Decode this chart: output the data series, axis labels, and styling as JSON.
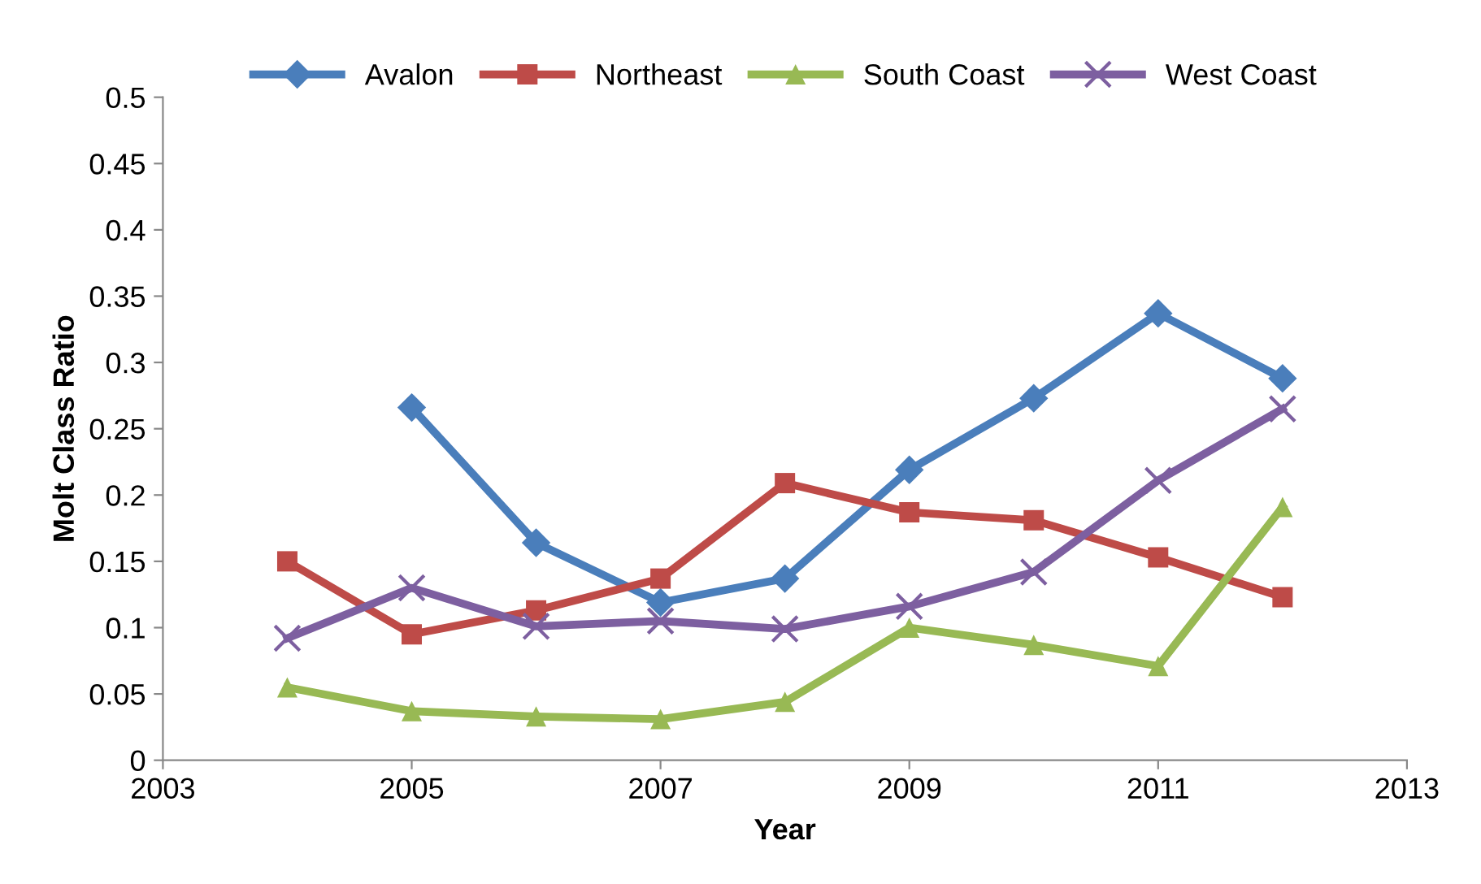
{
  "chart_data": {
    "type": "line",
    "xlabel": "Year",
    "ylabel": "Molt Class Ratio",
    "x": [
      2004,
      2005,
      2006,
      2007,
      2008,
      2009,
      2010,
      2011,
      2012
    ],
    "series": [
      {
        "name": "Avalon",
        "color": "#4a7ebb",
        "marker": "diamond",
        "values": [
          null,
          0.266,
          0.164,
          0.119,
          0.137,
          0.219,
          0.273,
          0.337,
          0.288
        ]
      },
      {
        "name": "Northeast",
        "color": "#be4b48",
        "marker": "square",
        "values": [
          0.15,
          0.095,
          0.113,
          0.137,
          0.209,
          0.187,
          0.181,
          0.153,
          0.123
        ]
      },
      {
        "name": "South Coast",
        "color": "#98b954",
        "marker": "triangle",
        "values": [
          0.055,
          0.037,
          0.033,
          0.031,
          0.044,
          0.1,
          0.087,
          0.071,
          0.191
        ]
      },
      {
        "name": "West Coast",
        "color": "#7d5fa0",
        "marker": "cross",
        "values": [
          0.092,
          0.13,
          0.101,
          0.105,
          0.099,
          0.116,
          0.142,
          0.211,
          0.265
        ]
      }
    ],
    "xlim": [
      2003,
      2013
    ],
    "xticks": [
      2003,
      2005,
      2007,
      2009,
      2011,
      2013
    ],
    "ylim": [
      0,
      0.5
    ],
    "yticks": [
      {
        "value": 0,
        "label": "0"
      },
      0.05,
      {
        "value": 0.1,
        "label": "0.1"
      },
      0.15,
      {
        "value": 0.2,
        "label": "0.2"
      },
      0.25,
      {
        "value": 0.3,
        "label": "0.3"
      },
      0.35,
      {
        "value": 0.4,
        "label": "0.4"
      },
      0.45,
      {
        "value": 0.5,
        "label": "0.5"
      }
    ],
    "grid": false,
    "legend": "top",
    "line_style": "solid"
  }
}
